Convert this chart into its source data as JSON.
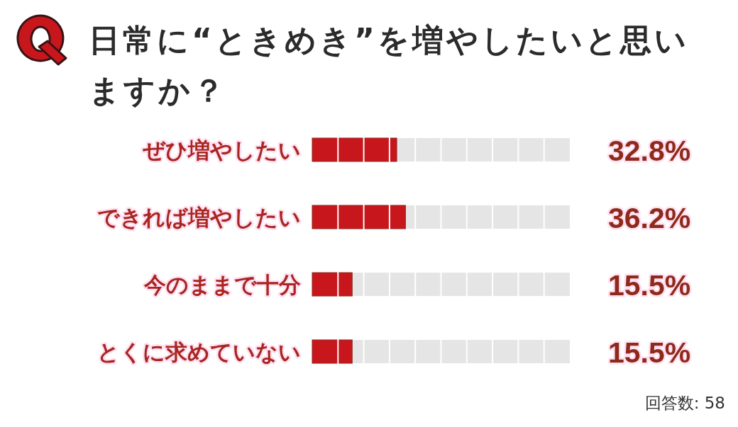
{
  "chart_data": {
    "type": "bar",
    "orientation": "horizontal",
    "title": "日常に“ときめき”を増やしたいと思いますか？",
    "categories": [
      "ぜひ増やしたい",
      "できれば増やしたい",
      "今のままで十分",
      "とくに求めていない"
    ],
    "values": [
      32.8,
      36.2,
      15.5,
      15.5
    ],
    "value_labels": [
      "32.8%",
      "36.2%",
      "15.5%",
      "15.5%"
    ],
    "color": "#c8161d",
    "xlim": [
      0,
      100
    ],
    "tick_labels": "y",
    "annotations": [
      "回答数: 58"
    ]
  }
}
